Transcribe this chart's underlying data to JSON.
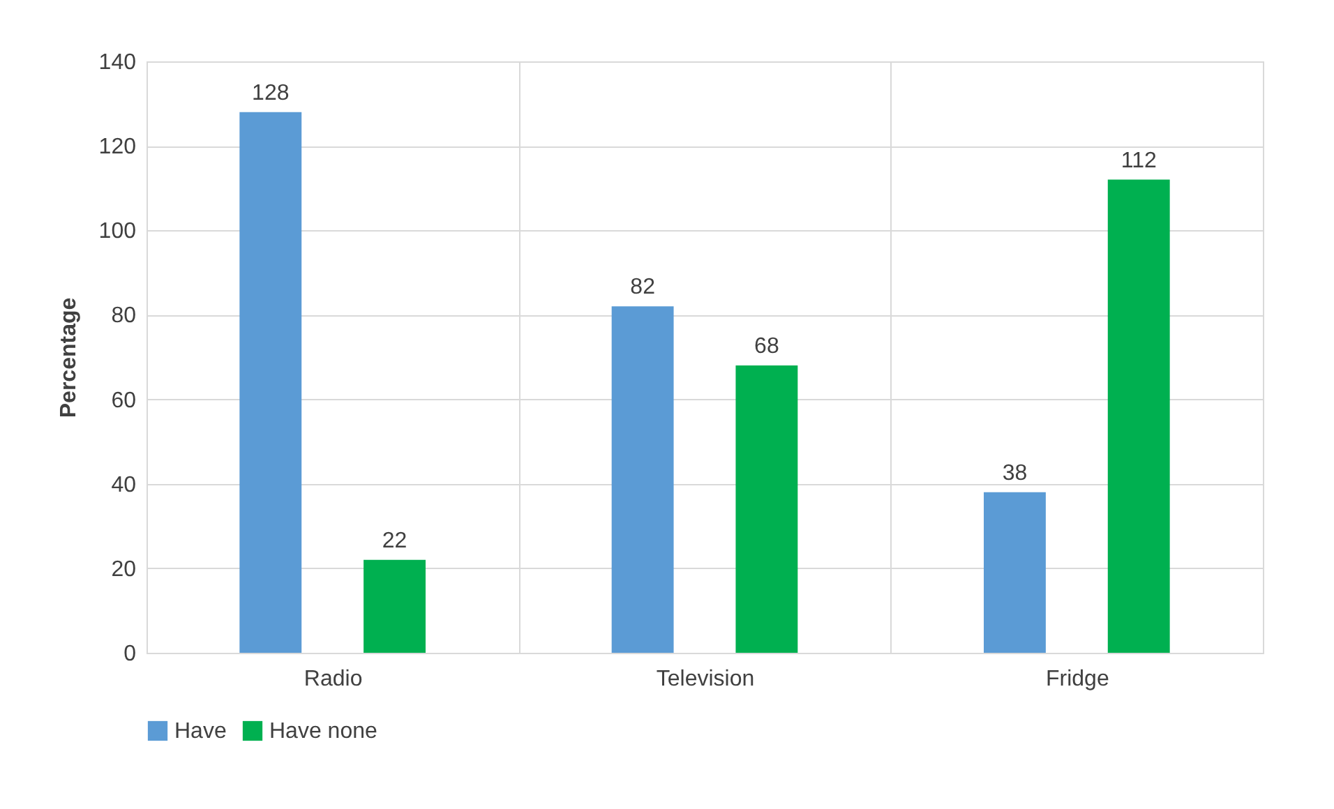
{
  "chart_data": {
    "type": "bar",
    "ylabel": "Percentage",
    "categories": [
      "Radio",
      "Television",
      "Fridge"
    ],
    "series": [
      {
        "name": "Have",
        "color": "#5b9bd5",
        "values": [
          128,
          82,
          38
        ]
      },
      {
        "name": "Have none",
        "color": "#00b050",
        "values": [
          22,
          68,
          112
        ]
      }
    ],
    "ylim": [
      0,
      140
    ],
    "yticks": [
      0,
      20,
      40,
      60,
      80,
      100,
      120,
      140
    ],
    "grid": true,
    "legend": "bottom",
    "data_labels": true
  }
}
